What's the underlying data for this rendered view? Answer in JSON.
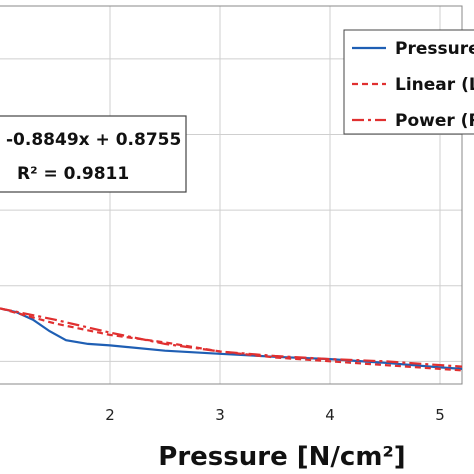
{
  "chart_data": {
    "type": "line",
    "xlabel": "Pressure [N/cm²]",
    "xlim": [
      1,
      5.2
    ],
    "ylim": [
      -0.8,
      4.2
    ],
    "x_ticks": [
      "2",
      "3",
      "4",
      "5"
    ],
    "y_ticks": [
      -0.5,
      0.5,
      1.5,
      2.5,
      3.5
    ],
    "grid": true,
    "legend_position": "top-right",
    "series": [
      {
        "name": "Pressure",
        "color": "#1f5fb4",
        "style": "solid",
        "x": [
          1.0,
          1.15,
          1.3,
          1.45,
          1.6,
          1.8,
          2.0,
          2.5,
          3.0,
          3.5,
          4.0,
          4.5,
          5.0,
          5.2
        ],
        "y": [
          0.2,
          0.15,
          0.05,
          -0.1,
          -0.22,
          -0.27,
          -0.29,
          -0.36,
          -0.4,
          -0.44,
          -0.47,
          -0.52,
          -0.58,
          -0.6
        ]
      },
      {
        "name": "Linear (L",
        "color": "#e03030",
        "style": "dashed",
        "x": [
          1.0,
          1.5,
          2.0,
          2.5,
          3.0,
          3.5,
          4.0,
          4.5,
          5.0,
          5.2
        ],
        "y": [
          0.2,
          0.0,
          -0.15,
          -0.25,
          -0.37,
          -0.45,
          -0.5,
          -0.55,
          -0.6,
          -0.62
        ]
      },
      {
        "name": "Power (R",
        "color": "#e03030",
        "style": "dashdot",
        "x": [
          1.0,
          1.5,
          2.0,
          2.5,
          3.0,
          3.5,
          4.0,
          4.5,
          5.0,
          5.2
        ],
        "y": [
          0.2,
          0.05,
          -0.12,
          -0.27,
          -0.37,
          -0.43,
          -0.47,
          -0.5,
          -0.55,
          -0.57
        ]
      }
    ],
    "annotation": {
      "line1": "-0.8849x + 0.8755",
      "line2": "R² = 0.9811"
    }
  }
}
